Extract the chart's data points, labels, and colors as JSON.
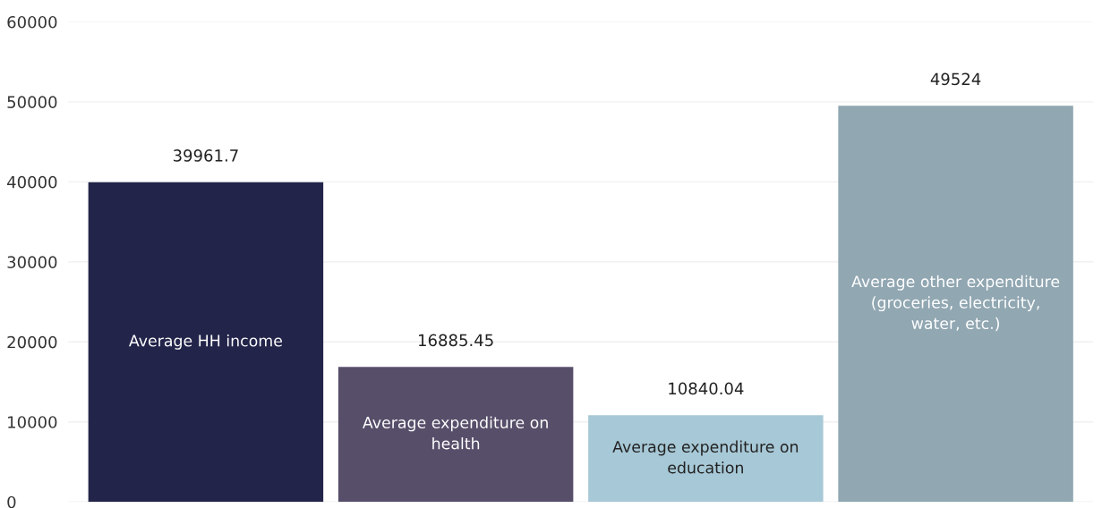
{
  "chart_data": {
    "type": "bar",
    "categories": [
      "Average HH income",
      "Average expenditure on\nhealth",
      "Average expenditure on\neducation",
      "Average other expenditure\n(groceries, electricity,\nwater, etc.)"
    ],
    "values": [
      39961.7,
      16885.45,
      10840.04,
      49524
    ],
    "colors": [
      "#23244a",
      "#574f6a",
      "#a7c8d6",
      "#91a7b2"
    ],
    "ylim": [
      0,
      60000
    ],
    "yticks": [
      0,
      10000,
      20000,
      30000,
      40000,
      50000,
      60000
    ],
    "grid": "y",
    "data_labels": true
  }
}
